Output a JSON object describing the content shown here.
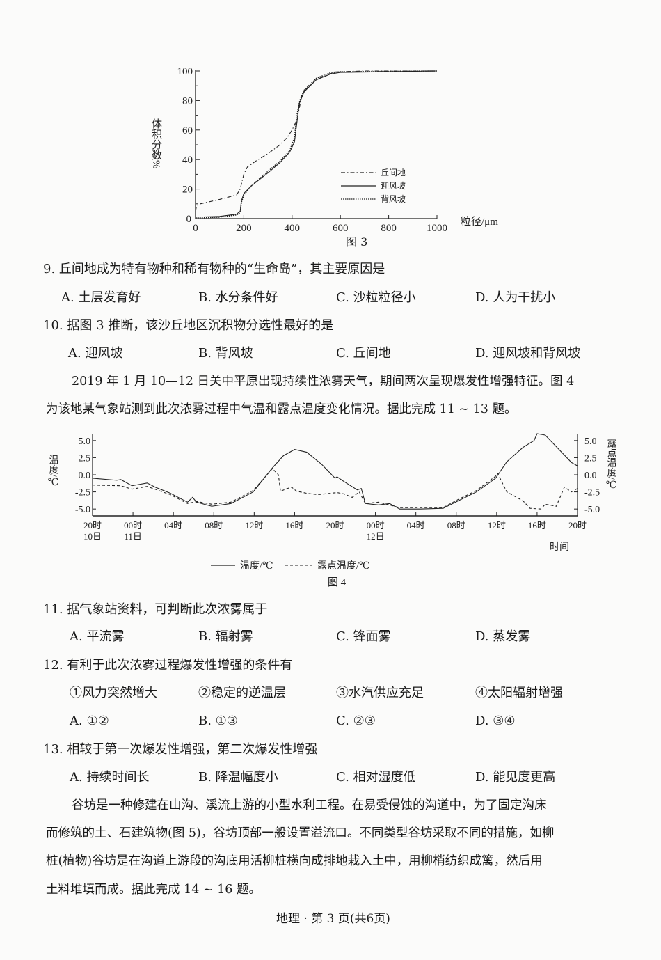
{
  "figure3": {
    "caption": "图 3",
    "chart_data": {
      "type": "line",
      "ylabel": "体积分数%",
      "xlabel": "粒径/μm",
      "xlim": [
        0,
        1000
      ],
      "ylim": [
        0,
        100
      ],
      "xticks": [
        "0",
        "200",
        "400",
        "600",
        "800",
        "1000"
      ],
      "yticks": [
        "0",
        "20",
        "40",
        "60",
        "80",
        "100"
      ],
      "legend_position": "bottom-right",
      "series": [
        {
          "name": "丘间地",
          "style": "dash-dot",
          "points": [
            [
              0,
              5
            ],
            [
              5,
              9
            ],
            [
              20,
              10
            ],
            [
              100,
              13
            ],
            [
              170,
              16
            ],
            [
              185,
              20
            ],
            [
              200,
              30
            ],
            [
              215,
              35
            ],
            [
              250,
              39
            ],
            [
              300,
              44
            ],
            [
              350,
              50
            ],
            [
              380,
              55
            ],
            [
              400,
              60
            ],
            [
              420,
              67
            ],
            [
              430,
              75
            ],
            [
              440,
              83
            ],
            [
              460,
              88
            ],
            [
              500,
              94
            ],
            [
              550,
              98
            ],
            [
              600,
              99.5
            ],
            [
              700,
              100
            ],
            [
              1000,
              100
            ]
          ]
        },
        {
          "name": "迎风坡",
          "style": "solid",
          "points": [
            [
              0,
              1
            ],
            [
              100,
              1.5
            ],
            [
              170,
              3
            ],
            [
              185,
              5
            ],
            [
              190,
              12
            ],
            [
              200,
              17
            ],
            [
              230,
              22
            ],
            [
              300,
              31
            ],
            [
              350,
              38
            ],
            [
              390,
              45
            ],
            [
              410,
              52
            ],
            [
              420,
              65
            ],
            [
              430,
              78
            ],
            [
              450,
              86
            ],
            [
              500,
              94
            ],
            [
              560,
              98
            ],
            [
              600,
              99
            ],
            [
              800,
              99.5
            ],
            [
              1000,
              100
            ]
          ]
        },
        {
          "name": "背风坡",
          "style": "dotted",
          "points": [
            [
              0,
              0.5
            ],
            [
              100,
              1
            ],
            [
              170,
              2.5
            ],
            [
              185,
              4
            ],
            [
              190,
              11
            ],
            [
              200,
              16
            ],
            [
              230,
              22
            ],
            [
              300,
              32
            ],
            [
              350,
              39
            ],
            [
              390,
              46
            ],
            [
              410,
              55
            ],
            [
              420,
              70
            ],
            [
              432,
              80
            ],
            [
              450,
              87
            ],
            [
              500,
              95
            ],
            [
              560,
              99
            ],
            [
              600,
              99.5
            ],
            [
              1000,
              100
            ]
          ]
        }
      ]
    }
  },
  "q9": {
    "stem": "9. 丘间地成为特有物种和稀有物种的“生命岛”，其主要原因是",
    "options": [
      "A. 土层发育好",
      "B. 水分条件好",
      "C. 沙粒粒径小",
      "D. 人为干扰小"
    ]
  },
  "q10": {
    "stem": "10. 据图 3 推断，该沙丘地区沉积物分选性最好的是",
    "options": [
      "A. 迎风坡",
      "B. 背风坡",
      "C. 丘间地",
      "D. 迎风坡和背风坡"
    ]
  },
  "intro2": [
    "2019 年 1 月 10—12 日关中平原出现持续性浓雾天气，期间两次呈现爆发性增强特征。图 4",
    "为该地某气象站测到此次浓雾过程中气温和露点温度变化情况。据此完成 11 ~ 13 题。"
  ],
  "figure4": {
    "caption": "图 4",
    "chart_data": {
      "type": "line",
      "ylabel": "温度/℃",
      "ylabel_right": "露点温度/℃",
      "xlabel": "时间",
      "ylim": [
        -6,
        6
      ],
      "yticks": [
        "5.0",
        "2.5",
        "0.0",
        "-2.5",
        "-5.0"
      ],
      "legend_position": "bottom",
      "xticks": [
        [
          "20时",
          "10日"
        ],
        [
          "00时",
          "11日"
        ],
        [
          "04时",
          ""
        ],
        [
          "08时",
          ""
        ],
        [
          "12时",
          ""
        ],
        [
          "16时",
          ""
        ],
        [
          "20时",
          ""
        ],
        [
          "00时",
          "12日"
        ],
        [
          "04时",
          ""
        ],
        [
          "08时",
          ""
        ],
        [
          "12时",
          ""
        ],
        [
          "16时",
          ""
        ],
        [
          "20时",
          ""
        ]
      ],
      "x_unit": "hours since 20时 10日",
      "series": [
        {
          "name": "温度/℃",
          "style": "solid",
          "points": [
            [
              0,
              -0.5
            ],
            [
              2.4,
              -0.8
            ],
            [
              2.8,
              -0.7
            ],
            [
              3.9,
              -1.6
            ],
            [
              5.4,
              -1.2
            ],
            [
              6.2,
              -1.8
            ],
            [
              7.7,
              -2.7
            ],
            [
              9.4,
              -4.0
            ],
            [
              9.9,
              -3.3
            ],
            [
              10.3,
              -4.0
            ],
            [
              11.8,
              -4.6
            ],
            [
              13.7,
              -4.2
            ],
            [
              15.9,
              -2.5
            ],
            [
              17.8,
              1.0
            ],
            [
              18.9,
              2.8
            ],
            [
              20,
              3.7
            ],
            [
              21.2,
              3.3
            ],
            [
              22.7,
              1.5
            ],
            [
              24,
              -0.5
            ],
            [
              24.2,
              -0.3
            ],
            [
              24.9,
              -1.0
            ],
            [
              26.2,
              -2.2
            ],
            [
              26.6,
              -2.0
            ],
            [
              27,
              -4.2
            ],
            [
              28.3,
              -4.4
            ],
            [
              29.4,
              -4.2
            ],
            [
              30.4,
              -5.0
            ],
            [
              32.4,
              -5.0
            ],
            [
              34.7,
              -4.9
            ],
            [
              36.2,
              -3.8
            ],
            [
              38,
              -2.5
            ],
            [
              39.9,
              -0.5
            ],
            [
              41,
              1.9
            ],
            [
              42.6,
              4.0
            ],
            [
              43.7,
              5.0
            ],
            [
              44,
              6.0
            ],
            [
              44.8,
              5.8
            ],
            [
              46.3,
              3.5
            ],
            [
              47.4,
              1.8
            ],
            [
              48,
              1.3
            ]
          ]
        },
        {
          "name": "露点温度/℃",
          "style": "dashed",
          "points": [
            [
              0,
              -1.5
            ],
            [
              2.8,
              -1.6
            ],
            [
              3.9,
              -2.1
            ],
            [
              5.4,
              -1.7
            ],
            [
              7.7,
              -2.9
            ],
            [
              9.4,
              -4.2
            ],
            [
              10.3,
              -3.9
            ],
            [
              11.8,
              -4.3
            ],
            [
              13.7,
              -4.0
            ],
            [
              15.9,
              -2.3
            ],
            [
              17.8,
              0.9
            ],
            [
              18.4,
              0
            ],
            [
              18.6,
              -2.4
            ],
            [
              19.3,
              -2.0
            ],
            [
              19.7,
              -1.8
            ],
            [
              20.2,
              -2.4
            ],
            [
              21.2,
              -2.7
            ],
            [
              22.3,
              -2.9
            ],
            [
              24.2,
              -2.6
            ],
            [
              24.9,
              -2.8
            ],
            [
              25.7,
              -3.3
            ],
            [
              26.4,
              -2.5
            ],
            [
              27,
              -4.2
            ],
            [
              28.3,
              -4.0
            ],
            [
              30.4,
              -4.8
            ],
            [
              34.7,
              -4.8
            ],
            [
              36.2,
              -3.6
            ],
            [
              38,
              -2.3
            ],
            [
              39.9,
              -0.2
            ],
            [
              40.1,
              0.2
            ],
            [
              41,
              -2.5
            ],
            [
              42.6,
              -3.8
            ],
            [
              43.3,
              -4.9
            ],
            [
              44.4,
              -5.0
            ],
            [
              44.8,
              -4.3
            ],
            [
              45.9,
              -4.6
            ],
            [
              46.7,
              -1.8
            ],
            [
              47.4,
              -2.5
            ],
            [
              48,
              -2.0
            ]
          ]
        }
      ]
    }
  },
  "q11": {
    "stem": "11. 据气象站资料，可判断此次浓雾属于",
    "options": [
      "A. 平流雾",
      "B. 辐射雾",
      "C. 锋面雾",
      "D. 蒸发雾"
    ]
  },
  "q12": {
    "stem": "12. 有利于此次浓雾过程爆发性增强的条件有",
    "items": [
      "①风力突然增大",
      "②稳定的逆温层",
      "③水汽供应充足",
      "④太阳辐射增强"
    ],
    "options": [
      "A. ①②",
      "B. ①③",
      "C. ②③",
      "D. ③④"
    ]
  },
  "q13": {
    "stem": "13. 相较于第一次爆发性增强，第二次爆发性增强",
    "options": [
      "A. 持续时间长",
      "B. 降温幅度小",
      "C. 相对湿度低",
      "D. 能见度更高"
    ]
  },
  "intro3": [
    "谷坊是一种修建在山沟、溪流上游的小型水利工程。在易受侵蚀的沟道中，为了固定沟床",
    "而修筑的土、石建筑物(图 5)，谷坊顶部一般设置溢流口。不同类型谷坊采取不同的措施，如柳",
    "桩(植物)谷坊是在沟道上游段的沟底用活柳桩横向成排地栽入土中，用柳梢纺织成篱，然后用",
    "土料堆填而成。据此完成 14 ~ 16 题。"
  ],
  "footer": "地理 · 第 3 页(共6页)"
}
